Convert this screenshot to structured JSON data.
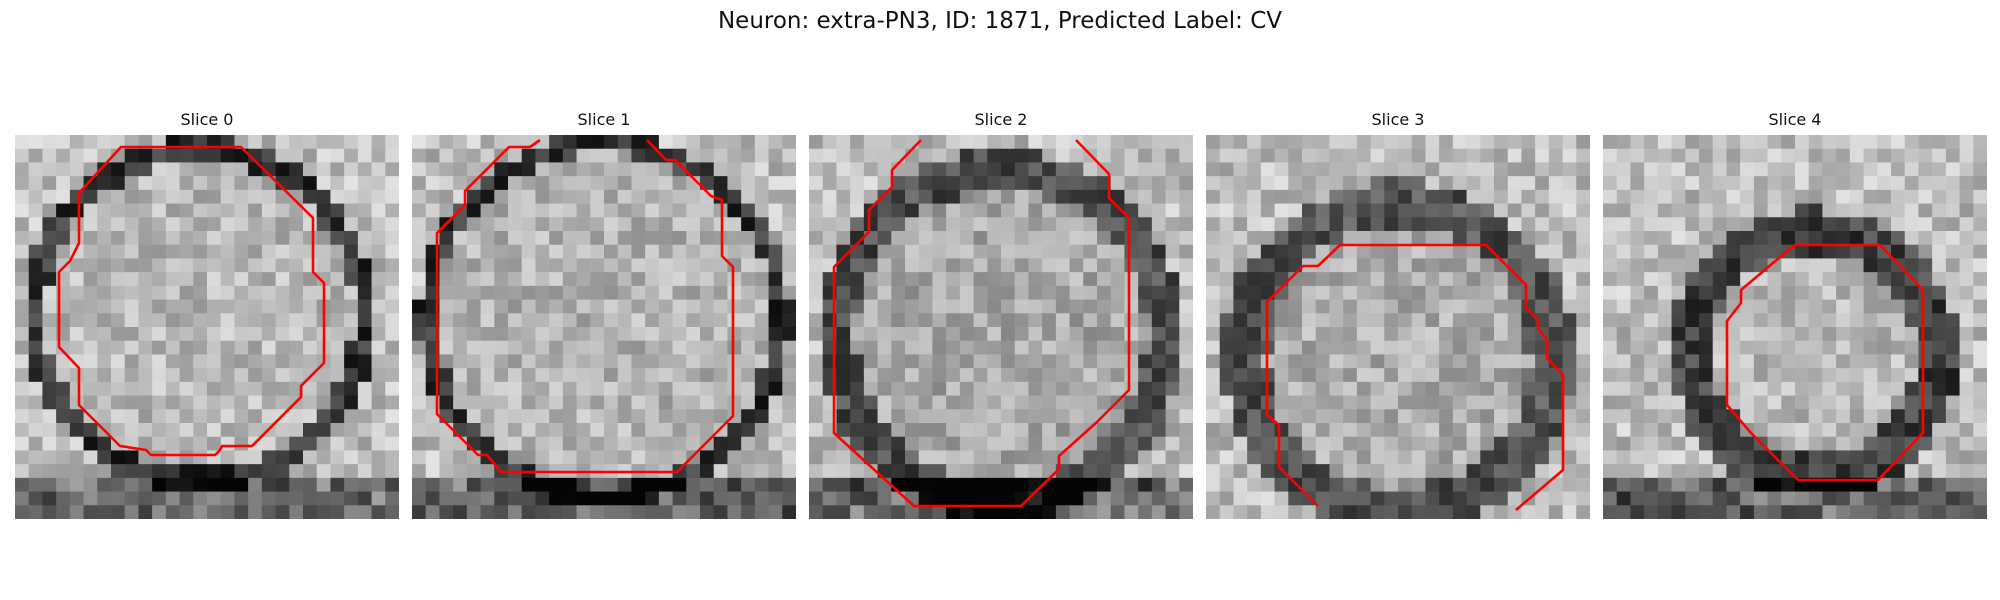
{
  "figure": {
    "title": "Neuron: extra-PN3, ID: 1871, Predicted Label: CV"
  },
  "panels": [
    {
      "title": "Slice 0",
      "contour_color": "#ff0000"
    },
    {
      "title": "Slice 1",
      "contour_color": "#ff0000"
    },
    {
      "title": "Slice 2",
      "contour_color": "#ff0000"
    },
    {
      "title": "Slice 3",
      "contour_color": "#ff0000"
    },
    {
      "title": "Slice 4",
      "contour_color": "#ff0000"
    }
  ]
}
